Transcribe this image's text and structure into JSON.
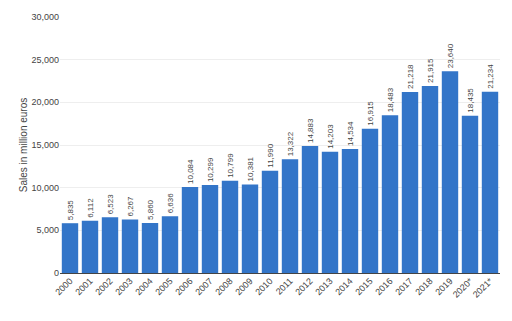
{
  "chart_data": {
    "type": "bar",
    "categories": [
      "2000",
      "2001",
      "2002",
      "2003",
      "2004",
      "2005",
      "2006",
      "2007",
      "2008",
      "2009",
      "2010",
      "2011",
      "2012",
      "2013",
      "2014",
      "2015",
      "2016",
      "2017",
      "2018",
      "2019",
      "2020*",
      "2021*"
    ],
    "values": [
      5835,
      6112,
      6523,
      6267,
      5860,
      6636,
      10084,
      10299,
      10799,
      10381,
      11990,
      13322,
      14883,
      14203,
      14534,
      16915,
      18483,
      21218,
      21915,
      23640,
      18435,
      21234
    ],
    "value_labels": [
      "5,835",
      "6,112",
      "6,523",
      "6,267",
      "5,860",
      "6,636",
      "10,084",
      "10,299",
      "10,799",
      "10,381",
      "11,990",
      "13,322",
      "14,883",
      "14,203",
      "14,534",
      "16,915",
      "18,483",
      "21,218",
      "21,915",
      "23,640",
      "18,435",
      "21,234"
    ],
    "data_labels": true,
    "color": "#3375C8",
    "ylabel": "Sales in million euros",
    "ylim": [
      0,
      30000
    ],
    "yticks": [
      0,
      {
        "value": 5000,
        "label": "5,000"
      },
      {
        "value": 10000,
        "label": "10,000"
      },
      {
        "value": 15000,
        "label": "15,000"
      },
      {
        "value": 20000,
        "label": "20,000"
      },
      {
        "value": 25000,
        "label": "25,000"
      },
      {
        "value": 30000,
        "label": "30,000"
      }
    ],
    "grid": true
  }
}
